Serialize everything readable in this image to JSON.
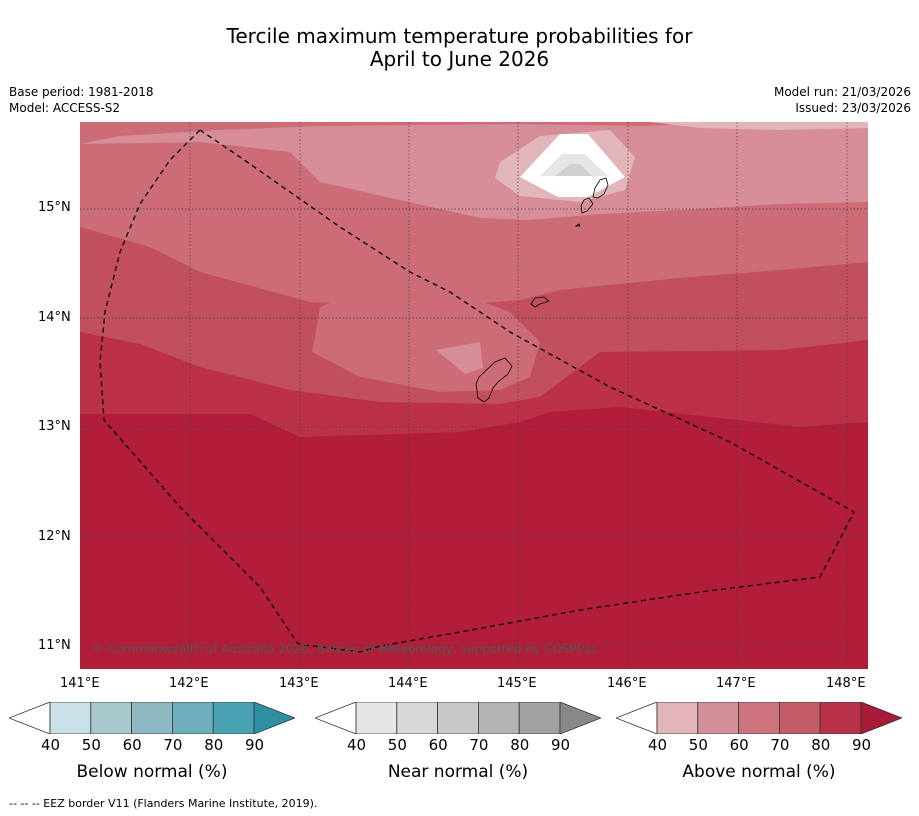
{
  "title": {
    "line1": "Tercile maximum temperature probabilities for",
    "line2": "April to June 2026"
  },
  "meta": {
    "base_period": "Base period: 1981-2018",
    "model": "Model: ACCESS-S2",
    "model_run": "Model run: 21/03/2026",
    "issued": "Issued: 23/03/2026"
  },
  "map": {
    "lat_labels": [
      "15°N",
      "14°N",
      "13°N",
      "12°N",
      "11°N"
    ],
    "lon_labels": [
      "141°E",
      "142°E",
      "143°E",
      "144°E",
      "145°E",
      "146°E",
      "147°E",
      "148°E"
    ],
    "copyright": "© Commonwealth of Australia 2026, Bureau of Meteorology, supported by COSPPac"
  },
  "colorbars": [
    {
      "title": "Below normal (%)",
      "ticks": [
        "40",
        "50",
        "60",
        "70",
        "80",
        "90"
      ],
      "colors": [
        "#c9e1e7",
        "#a8c8cd",
        "#8bb8c1",
        "#6faebd",
        "#49a3b2",
        "#2e8fa0"
      ]
    },
    {
      "title": "Near normal (%)",
      "ticks": [
        "40",
        "50",
        "60",
        "70",
        "80",
        "90"
      ],
      "colors": [
        "#e6e6e6",
        "#d8d8d8",
        "#c8c8c8",
        "#b4b4b4",
        "#a1a1a1",
        "#888888"
      ]
    },
    {
      "title": "Above normal (%)",
      "ticks": [
        "40",
        "50",
        "60",
        "70",
        "80",
        "90"
      ],
      "colors": [
        "#e2b5ba",
        "#d4909a",
        "#cc737e",
        "#c45c66",
        "#ba3249",
        "#a71b38"
      ]
    }
  ],
  "footnote": "--  --  -- EEZ border V11 (Flanders Marine Institute, 2019).",
  "colors": {
    "above_40_50": "#e2b5ba",
    "above_50_60": "#d68d97",
    "above_60_70": "#cc6c76",
    "above_70_80": "#c24f5d",
    "above_80_90": "#bb3148",
    "above_90": "#b21d39",
    "near_normal_light": "#e6e6e6",
    "near_normal_mid": "#d0d0d0"
  }
}
